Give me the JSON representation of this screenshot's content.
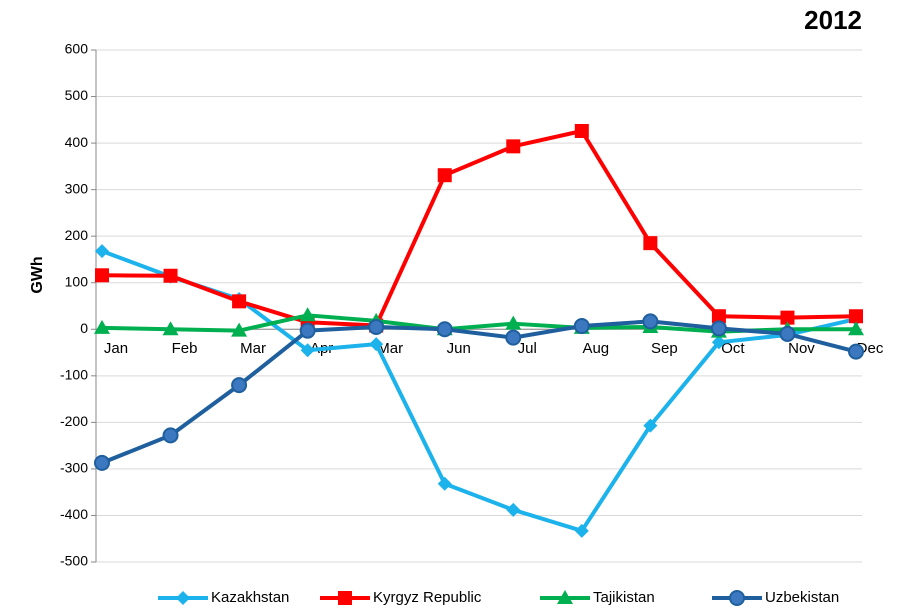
{
  "chart_data": {
    "type": "line",
    "title": "2012",
    "y_label": "GWh",
    "categories": [
      "Jan",
      "Feb",
      "Mar",
      "Apr",
      "Mar",
      "Jun",
      "Jul",
      "Aug",
      "Sep",
      "Oct",
      "Nov",
      "Dec"
    ],
    "series": [
      {
        "name": "Kazakhstan",
        "color": "#1cb2ec",
        "marker": "diamond",
        "values": [
          168,
          113,
          65,
          -45,
          -32,
          -332,
          -388,
          -433,
          -207,
          -28,
          -12,
          22
        ]
      },
      {
        "name": "Kyrgyz Republic",
        "color": "#ff0000",
        "marker": "square",
        "values": [
          116,
          115,
          60,
          15,
          8,
          331,
          393,
          426,
          185,
          28,
          25,
          28
        ]
      },
      {
        "name": "Tajikistan",
        "color": "#00b050",
        "marker": "triangle",
        "values": [
          3,
          0,
          -3,
          30,
          18,
          0,
          12,
          3,
          5,
          -5,
          0,
          0
        ]
      },
      {
        "name": "Uzbekistan",
        "color": "#1f5f9e",
        "marker": "circle",
        "values": [
          -287,
          -228,
          -120,
          -3,
          5,
          0,
          -18,
          7,
          17,
          2,
          -10,
          -48
        ]
      }
    ],
    "ylim": [
      -500,
      600
    ],
    "yticks": [
      -500,
      -400,
      -300,
      -200,
      -100,
      0,
      100,
      200,
      300,
      400,
      500,
      600
    ],
    "grid": true,
    "legend": "bottom"
  }
}
